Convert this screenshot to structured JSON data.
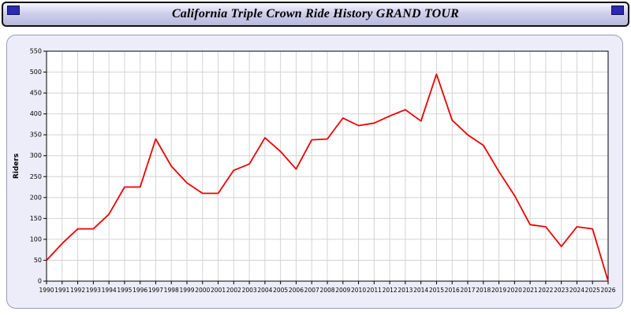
{
  "header": {
    "title": "California Triple Crown Ride History GRAND TOUR"
  },
  "chart_data": {
    "type": "line",
    "title": "California Triple Crown Ride History GRAND TOUR",
    "xlabel": "",
    "ylabel": "Riders",
    "ylim": [
      0,
      550
    ],
    "y_tick_step": 50,
    "grid": true,
    "legend": "none",
    "line_color": "#ee0000",
    "x": [
      1990,
      1991,
      1992,
      1993,
      1994,
      1995,
      1996,
      1997,
      1998,
      1999,
      2000,
      2001,
      2002,
      2003,
      2004,
      2005,
      2006,
      2007,
      2008,
      2009,
      2010,
      2011,
      2012,
      2013,
      2014,
      2015,
      2016,
      2017,
      2018,
      2019,
      2020,
      2021,
      2022,
      2023,
      2024,
      2025,
      2026
    ],
    "values": [
      50,
      90,
      125,
      125,
      160,
      225,
      225,
      340,
      275,
      235,
      210,
      210,
      265,
      280,
      343,
      310,
      268,
      338,
      340,
      390,
      372,
      378,
      395,
      410,
      383,
      495,
      385,
      350,
      325,
      262,
      205,
      135,
      130,
      83,
      130,
      125,
      0
    ]
  }
}
